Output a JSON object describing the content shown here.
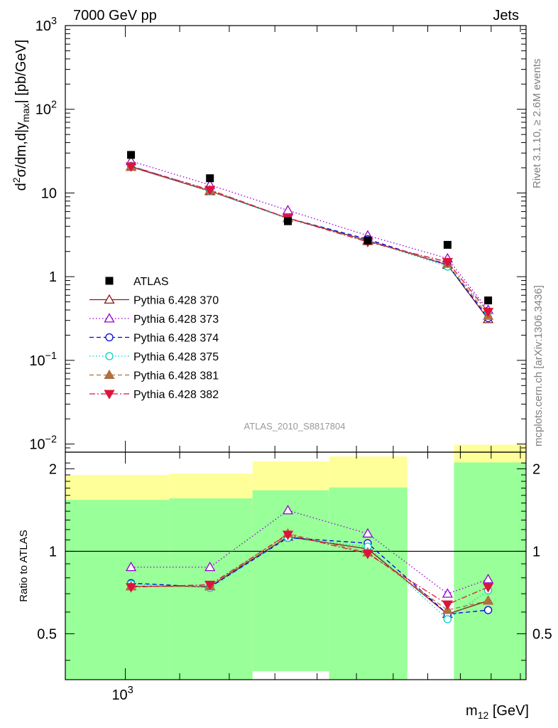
{
  "header": {
    "left": "7000 GeV pp",
    "right": "Jets"
  },
  "side_labels": {
    "rivet": "Rivet 3.1.10, ≥ 2.6M events",
    "mcplots": "mcplots.cern.ch [arXiv:1306.3436]"
  },
  "analysis_id": "ATLAS_2010_S8817804",
  "axes": {
    "ylabel_main": "d²σ/dm,d|y_max| [pb/GeV]",
    "ylabel_ratio": "Ratio to ATLAS",
    "xlabel": "m12 [GeV]"
  },
  "chart_data": [
    {
      "panel": "main",
      "type": "scatter",
      "x_scale": "log",
      "y_scale": "log",
      "xlim": [
        900,
        2020
      ],
      "ylim": [
        0.008,
        1000
      ],
      "x_ticks": [
        {
          "value": 1000,
          "label": "10^3"
        }
      ],
      "y_ticks": [
        {
          "value": 0.01,
          "label": "10^-2"
        },
        {
          "value": 0.1,
          "label": "10^-1"
        },
        {
          "value": 1,
          "label": "1"
        },
        {
          "value": 10,
          "label": "10"
        },
        {
          "value": 100,
          "label": "10^2"
        },
        {
          "value": 1000,
          "label": "10^3"
        }
      ],
      "x": [
        1010,
        1160,
        1330,
        1530,
        1760,
        1890
      ],
      "data": {
        "name": "ATLAS",
        "values": [
          28.5,
          15.0,
          4.6,
          2.7,
          2.4,
          0.52
        ],
        "color": "#000000",
        "marker": "square"
      },
      "series": [
        {
          "name": "Pythia 6.428 370",
          "values": [
            20.5,
            10.5,
            5.0,
            2.7,
            1.38,
            0.31
          ],
          "color": "#8b1a1a",
          "marker": "triangle-up-open",
          "dash": "solid"
        },
        {
          "name": "Pythia 6.428 373",
          "values": [
            24.0,
            12.5,
            6.2,
            3.1,
            1.65,
            0.4
          ],
          "color": "#9400d3",
          "marker": "triangle-up-open",
          "dash": "dotted"
        },
        {
          "name": "Pythia 6.428 374",
          "values": [
            21.0,
            10.7,
            5.0,
            2.8,
            1.38,
            0.32
          ],
          "color": "#0000dd",
          "marker": "circle-open",
          "dash": "dashed"
        },
        {
          "name": "Pythia 6.428 375",
          "values": [
            21.0,
            10.5,
            4.9,
            2.7,
            1.32,
            0.38
          ],
          "color": "#00d0c0",
          "marker": "circle-open",
          "dash": "dotted"
        },
        {
          "name": "Pythia 6.428 381",
          "values": [
            20.7,
            10.7,
            5.0,
            2.65,
            1.42,
            0.34
          ],
          "color": "#b07040",
          "marker": "triangle-up-filled",
          "dash": "dashed"
        },
        {
          "name": "Pythia 6.428 382",
          "values": [
            20.8,
            10.9,
            5.0,
            2.6,
            1.5,
            0.38
          ],
          "color": "#dc143c",
          "marker": "triangle-down-filled",
          "dash": "dashdot"
        }
      ],
      "legend_placement": "lower-left"
    },
    {
      "panel": "ratio",
      "type": "line",
      "x_scale": "log",
      "y_scale": "log",
      "ylim": [
        0.34,
        2.3
      ],
      "y_ticks": [
        {
          "value": 0.5,
          "label": "0.5"
        },
        {
          "value": 1,
          "label": "1"
        },
        {
          "value": 2,
          "label": "2"
        }
      ],
      "reference_line": 1,
      "bands": [
        {
          "x_range": [
            900,
            1080
          ],
          "yellow": [
            0.58,
            1.9
          ],
          "green": [
            0.34,
            1.54
          ]
        },
        {
          "x_range": [
            1080,
            1250
          ],
          "yellow": [
            0.55,
            1.92
          ],
          "green": [
            0.34,
            1.56
          ]
        },
        {
          "x_range": [
            1250,
            1430
          ],
          "yellow": [
            0.365,
            2.13
          ],
          "green": [
            0.365,
            1.67
          ]
        },
        {
          "x_range": [
            1430,
            1640
          ],
          "yellow": [
            0.34,
            2.22
          ],
          "green": [
            0.34,
            1.71
          ]
        },
        {
          "x_range": [
            1780,
            2020
          ],
          "yellow": [
            0.34,
            2.45
          ],
          "green": [
            0.34,
            2.11
          ]
        }
      ],
      "x": [
        1010,
        1160,
        1330,
        1530,
        1760,
        1890
      ],
      "series": [
        {
          "name": "Pythia 6.428 370",
          "values": [
            0.745,
            0.745,
            1.13,
            1.02,
            0.59,
            0.66
          ]
        },
        {
          "name": "Pythia 6.428 373",
          "values": [
            0.875,
            0.875,
            1.41,
            1.16,
            0.7,
            0.79
          ]
        },
        {
          "name": "Pythia 6.428 374",
          "values": [
            0.765,
            0.74,
            1.12,
            1.07,
            0.59,
            0.61
          ]
        },
        {
          "name": "Pythia 6.428 375",
          "values": [
            0.76,
            0.735,
            1.12,
            1.04,
            0.565,
            0.72
          ]
        },
        {
          "name": "Pythia 6.428 381",
          "values": [
            0.745,
            0.745,
            1.16,
            0.99,
            0.61,
            0.66
          ]
        },
        {
          "name": "Pythia 6.428 382",
          "values": [
            0.74,
            0.755,
            1.15,
            0.98,
            0.64,
            0.74
          ]
        }
      ]
    }
  ]
}
